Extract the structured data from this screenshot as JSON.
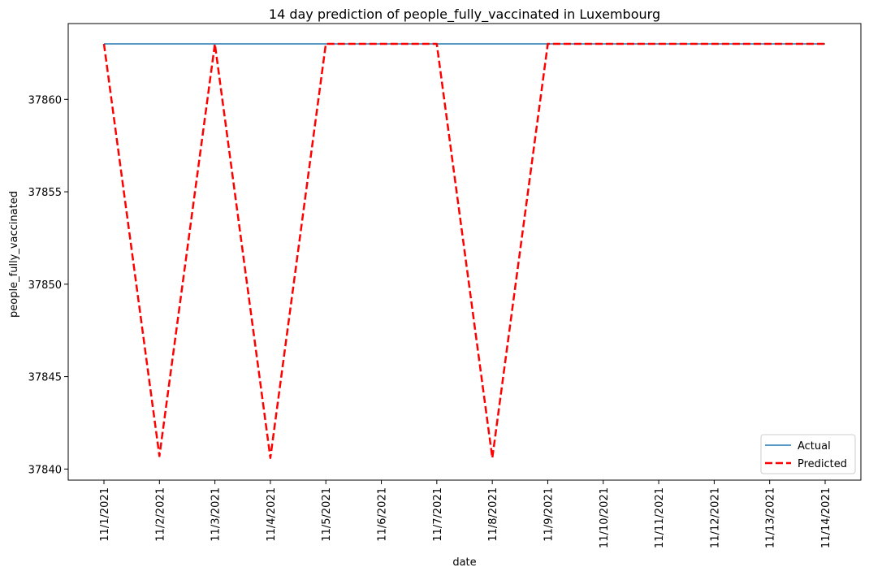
{
  "chart_data": {
    "type": "line",
    "title": "14 day prediction of people_fully_vaccinated in Luxembourg",
    "xlabel": "date",
    "ylabel": "people_fully_vaccinated",
    "categories": [
      "11/1/2021",
      "11/2/2021",
      "11/3/2021",
      "11/4/2021",
      "11/5/2021",
      "11/6/2021",
      "11/7/2021",
      "11/8/2021",
      "11/9/2021",
      "11/10/2021",
      "11/11/2021",
      "11/12/2021",
      "11/13/2021",
      "11/14/2021"
    ],
    "yticks": [
      37840,
      37845,
      37850,
      37855,
      37860
    ],
    "ylim": [
      37839.4,
      37864.1
    ],
    "grid": false,
    "legend_position": "bottom-right",
    "series": [
      {
        "name": "Actual",
        "color": "#1f77b4",
        "style": "solid",
        "values": [
          37863,
          37863,
          37863,
          37863,
          37863,
          37863,
          37863,
          37863,
          37863,
          37863,
          37863,
          37863,
          37863,
          37863
        ]
      },
      {
        "name": "Predicted",
        "color": "#ff0000",
        "style": "dashed",
        "values": [
          37863,
          37840.7,
          37863,
          37840.6,
          37863,
          37863,
          37863,
          37840.6,
          37863,
          37863,
          37863,
          37863,
          37863,
          37863
        ]
      }
    ]
  }
}
